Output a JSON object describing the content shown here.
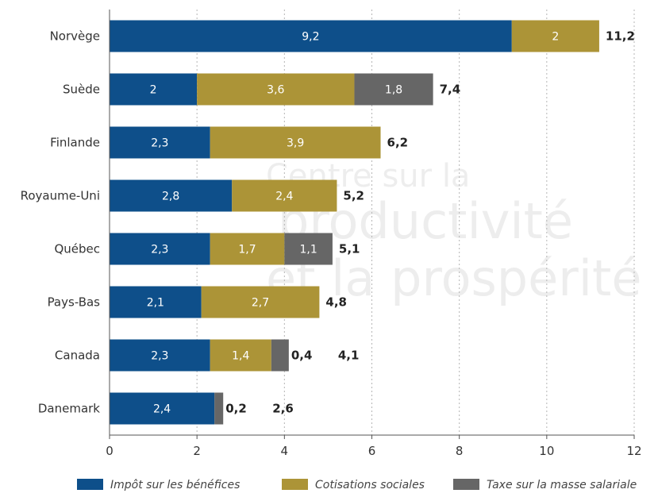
{
  "watermark": {
    "line1": "Centre sur la",
    "line2": "productivité",
    "line3": "et la prospérité"
  },
  "chart_data": {
    "type": "bar",
    "orientation": "horizontal",
    "stacked": true,
    "categories": [
      "Norvège",
      "Suède",
      "Finlande",
      "Royaume-Uni",
      "Québec",
      "Pays-Bas",
      "Canada",
      "Danemark"
    ],
    "series": [
      {
        "name": "Impôt sur les bénéfices",
        "color": "#0e4f8a",
        "values": [
          9.2,
          2,
          2.3,
          2.8,
          2.3,
          2.1,
          2.3,
          2.4
        ],
        "labels": [
          "9,2",
          "2",
          "2,3",
          "2,8",
          "2,3",
          "2,1",
          "2,3",
          "2,4"
        ]
      },
      {
        "name": "Cotisations sociales",
        "color": "#ac9437",
        "values": [
          2,
          3.6,
          3.9,
          2.4,
          1.7,
          2.7,
          1.4,
          0
        ],
        "labels": [
          "2",
          "3,6",
          "3,9",
          "2,4",
          "1,7",
          "2,7",
          "1,4",
          ""
        ]
      },
      {
        "name": "Taxe sur la masse salariale",
        "color": "#666666",
        "values": [
          0,
          1.8,
          0,
          0,
          1.1,
          0,
          0.4,
          0.2
        ],
        "labels": [
          "",
          "1,8",
          "",
          "",
          "1,1",
          "",
          "0,4",
          "0,2"
        ]
      }
    ],
    "totals": [
      11.2,
      7.4,
      6.2,
      5.2,
      5.1,
      4.8,
      4.1,
      2.6
    ],
    "total_labels": [
      "11,2",
      "7,4",
      "6,2",
      "5,2",
      "5,1",
      "4,8",
      "4,1",
      "2,6"
    ],
    "xlim": [
      0,
      12
    ],
    "xticks": [
      0,
      2,
      4,
      6,
      8,
      10,
      12
    ],
    "xtick_labels": [
      "0",
      "2",
      "4",
      "6",
      "8",
      "10",
      "12"
    ],
    "grid": "vertical dotted",
    "legend_position": "bottom",
    "title": "",
    "xlabel": "",
    "ylabel": ""
  }
}
